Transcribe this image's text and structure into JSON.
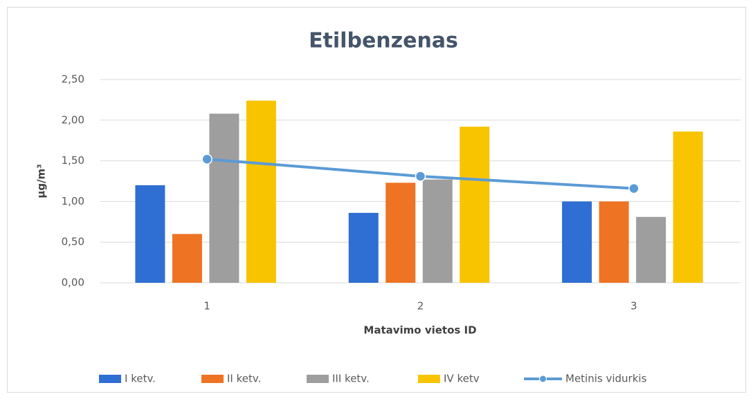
{
  "chart_data": {
    "type": "bar",
    "title": "Etilbenzenas",
    "x_label": "Matavimo vietos ID",
    "y_label": "µg/m³",
    "categories": [
      "1",
      "2",
      "3"
    ],
    "series": [
      {
        "name": "I ketv.",
        "color": "#2f6ed3",
        "values": [
          1.2,
          0.86,
          1.0
        ]
      },
      {
        "name": "II ketv.",
        "color": "#ee7323",
        "values": [
          0.6,
          1.23,
          1.0
        ]
      },
      {
        "name": "III ketv.",
        "color": "#9e9e9e",
        "values": [
          2.08,
          1.27,
          0.81
        ]
      },
      {
        "name": "IV ketv",
        "color": "#f8c400",
        "values": [
          2.24,
          1.92,
          1.86
        ]
      },
      {
        "name": "Metinis vidurkis",
        "color": "#5b9bd5",
        "type": "line",
        "values": [
          1.52,
          1.31,
          1.16
        ]
      }
    ],
    "ylim": [
      0,
      2.5
    ],
    "yticks": [
      {
        "value": 0,
        "label": "0,00"
      },
      {
        "value": 0.5,
        "label": "0,50"
      },
      {
        "value": 1,
        "label": "1,00"
      },
      {
        "value": 1.5,
        "label": "1,50"
      },
      {
        "value": 2,
        "label": "2,00"
      },
      {
        "value": 2.5,
        "label": "2,50"
      }
    ],
    "grid": true,
    "legend": "bottom"
  }
}
